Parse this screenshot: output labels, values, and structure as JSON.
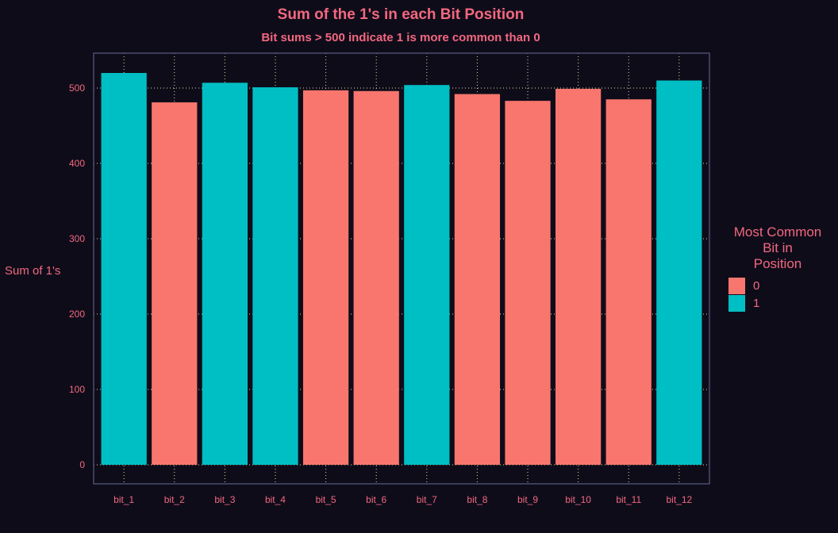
{
  "chart_data": {
    "type": "bar",
    "title": "Sum of the 1's in each Bit Position",
    "subtitle": "Bit sums > 500 indicate 1 is more common than 0",
    "xlabel": "",
    "ylabel": "Sum of 1's",
    "categories": [
      "bit_1",
      "bit_2",
      "bit_3",
      "bit_4",
      "bit_5",
      "bit_6",
      "bit_7",
      "bit_8",
      "bit_9",
      "bit_10",
      "bit_11",
      "bit_12"
    ],
    "values": [
      520,
      481,
      507,
      501,
      497,
      496,
      504,
      492,
      483,
      499,
      485,
      510
    ],
    "most_common_bit": [
      "1",
      "0",
      "1",
      "1",
      "0",
      "0",
      "1",
      "0",
      "0",
      "0",
      "0",
      "1"
    ],
    "ylim": [
      0,
      545
    ],
    "yticks": [
      0,
      100,
      200,
      300,
      400,
      500
    ],
    "grid": true,
    "legend": {
      "title_lines": [
        "Most Common",
        "Bit in",
        "Position"
      ],
      "placement": "right",
      "items": [
        {
          "label": "0",
          "color": "#f8766d"
        },
        {
          "label": "1",
          "color": "#00bfc4"
        }
      ]
    },
    "colors": {
      "background": "#0f0c1a",
      "text": "#f2687f",
      "grid": "#e8d9a0",
      "panel_border": "#4a4d6e"
    }
  }
}
